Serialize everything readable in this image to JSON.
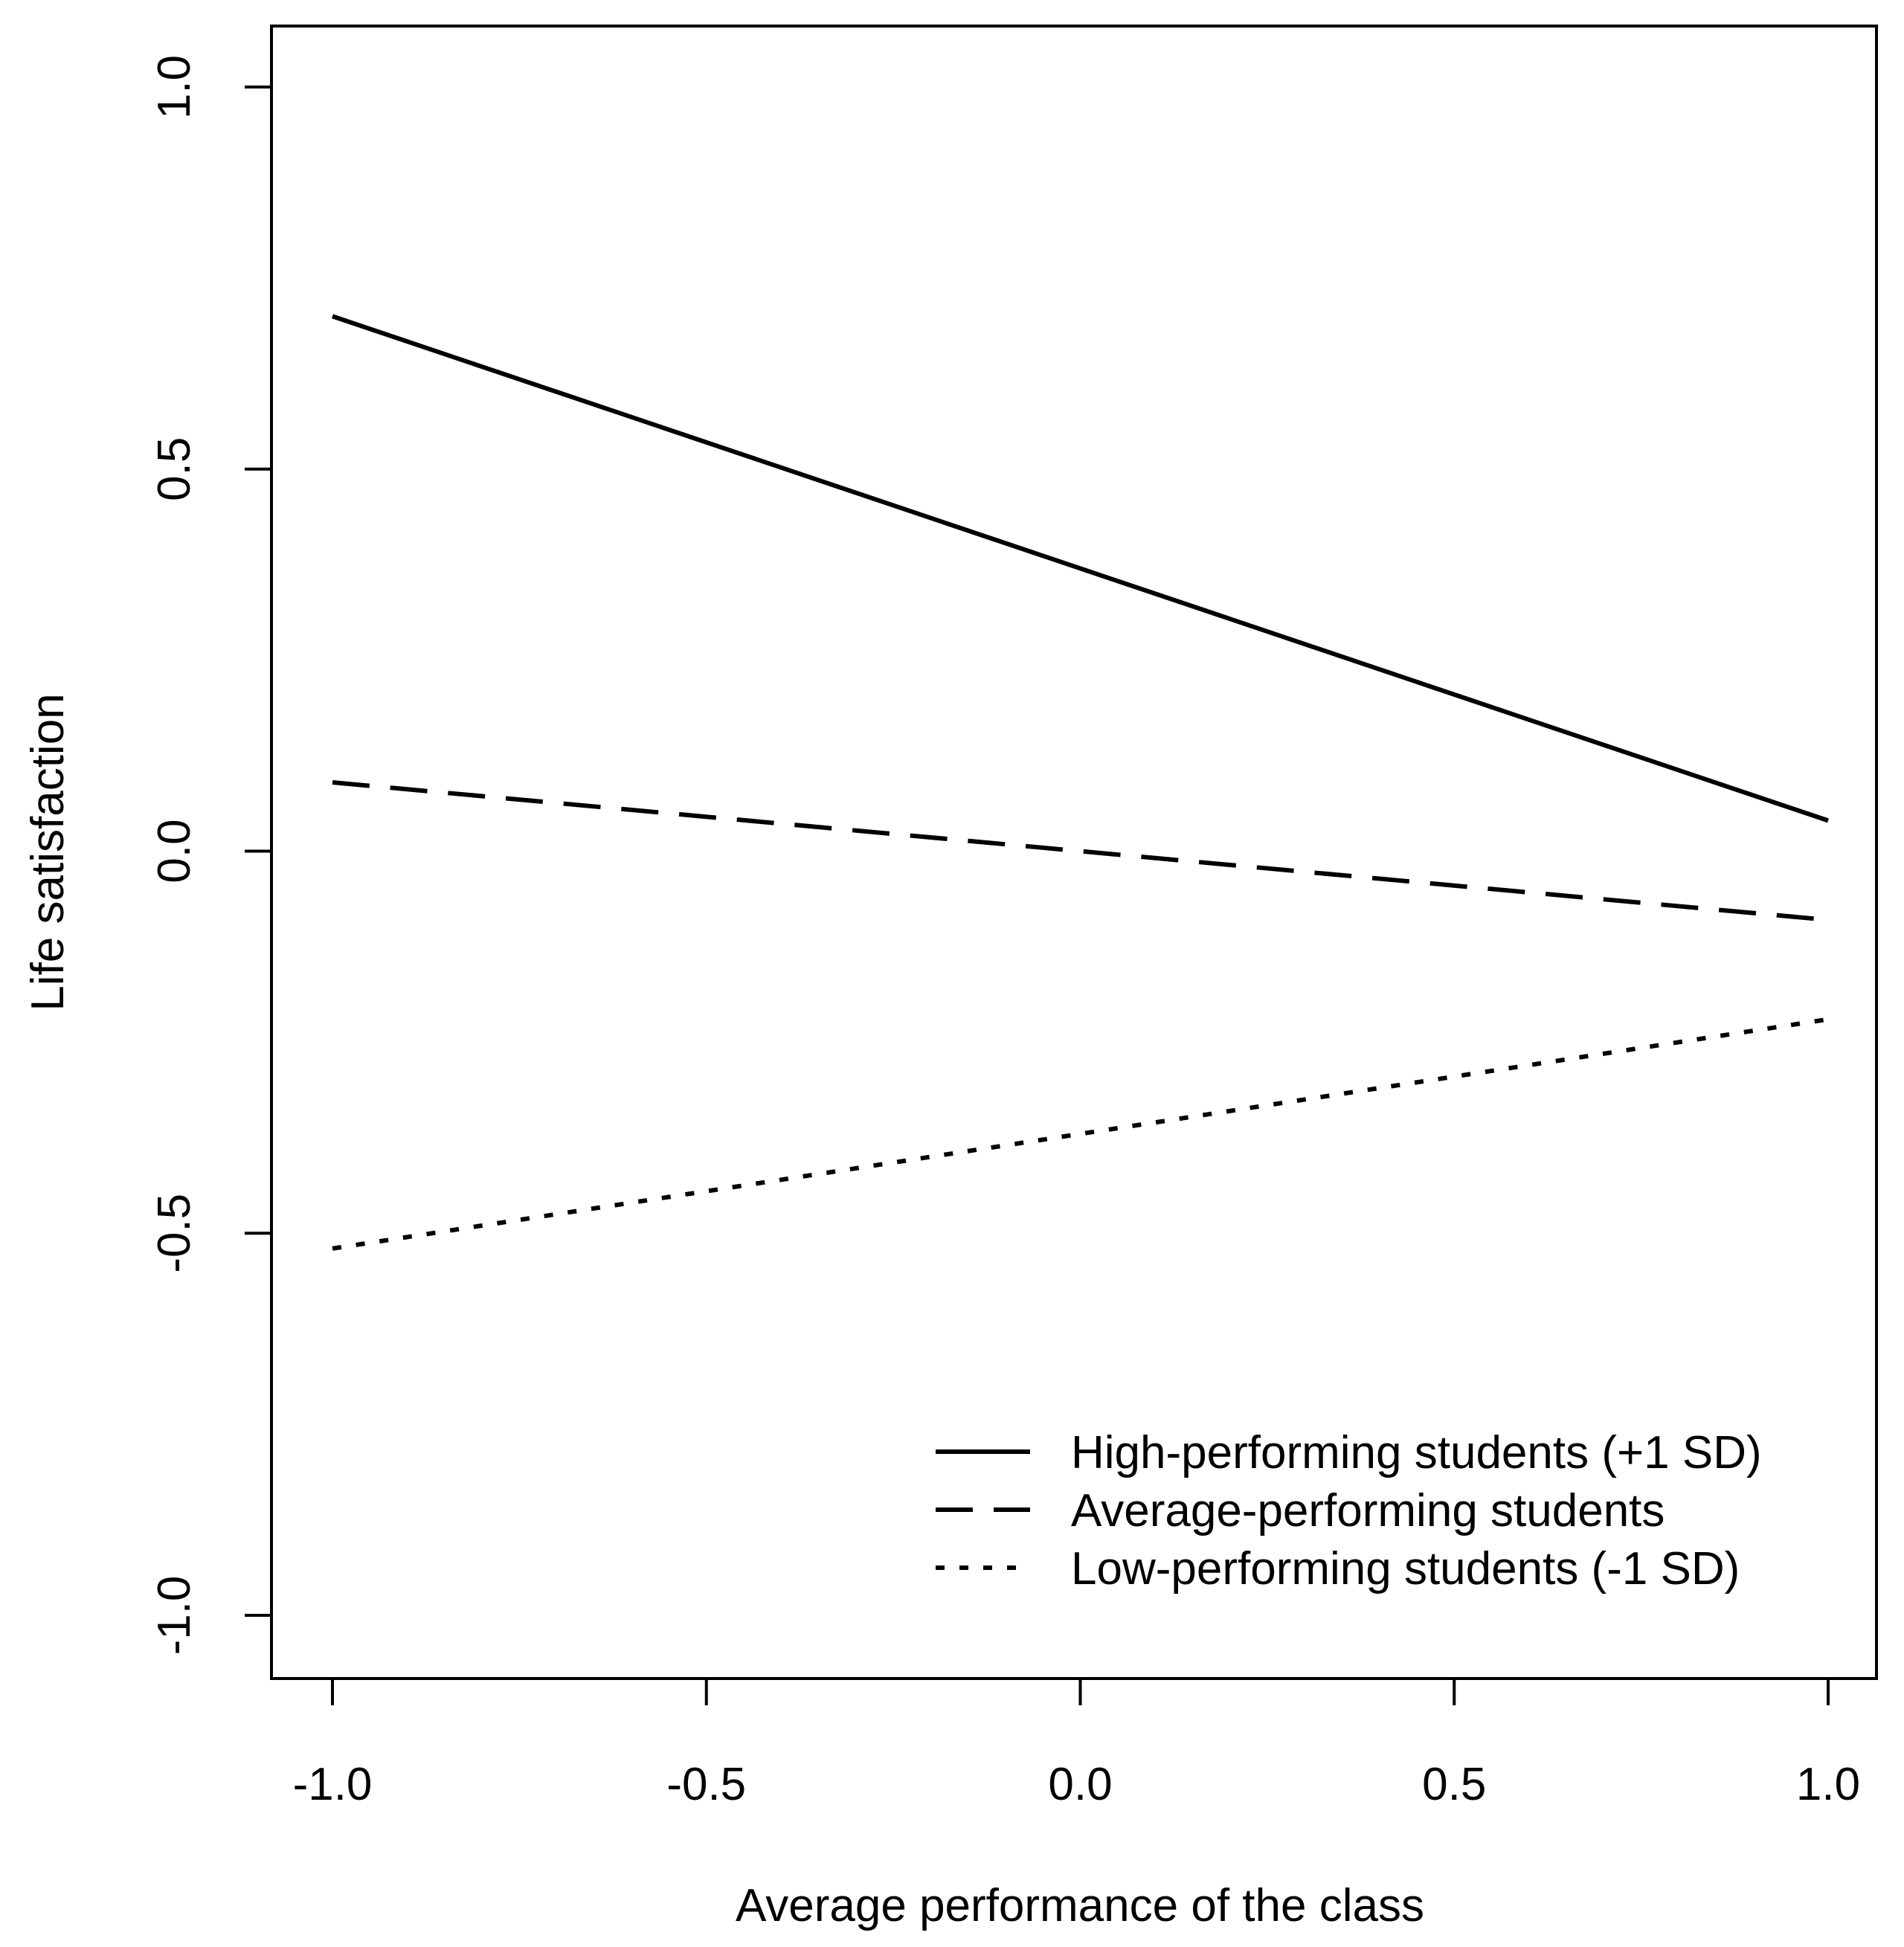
{
  "chart_data": {
    "type": "line",
    "title": "",
    "xlabel": "Average performance of the class",
    "ylabel": "Life satisfaction",
    "xlim": [
      -1.0,
      1.0
    ],
    "ylim": [
      -1.0,
      1.0
    ],
    "grid": false,
    "legend_position": "bottom-right",
    "x_ticks": [
      -1.0,
      -0.5,
      0.0,
      0.5,
      1.0
    ],
    "x_tick_labels": [
      "-1.0",
      "-0.5",
      "0.0",
      "0.5",
      "1.0"
    ],
    "y_ticks": [
      -1.0,
      -0.5,
      0.0,
      0.5,
      1.0
    ],
    "y_tick_labels": [
      "-1.0",
      "-0.5",
      "0.0",
      "0.5",
      "1.0"
    ],
    "series": [
      {
        "name": "High-performing students (+1 SD)",
        "style": "solid",
        "x": [
          -1.0,
          1.0
        ],
        "y": [
          0.7,
          0.04
        ]
      },
      {
        "name": "Average-performing students",
        "style": "dashed",
        "x": [
          -1.0,
          1.0
        ],
        "y": [
          0.09,
          -0.09
        ]
      },
      {
        "name": "Low-performing students (-1 SD)",
        "style": "dotted",
        "x": [
          -1.0,
          1.0
        ],
        "y": [
          -0.52,
          -0.22
        ]
      }
    ],
    "colors": {
      "line": "#000000",
      "background": "#ffffff"
    }
  }
}
